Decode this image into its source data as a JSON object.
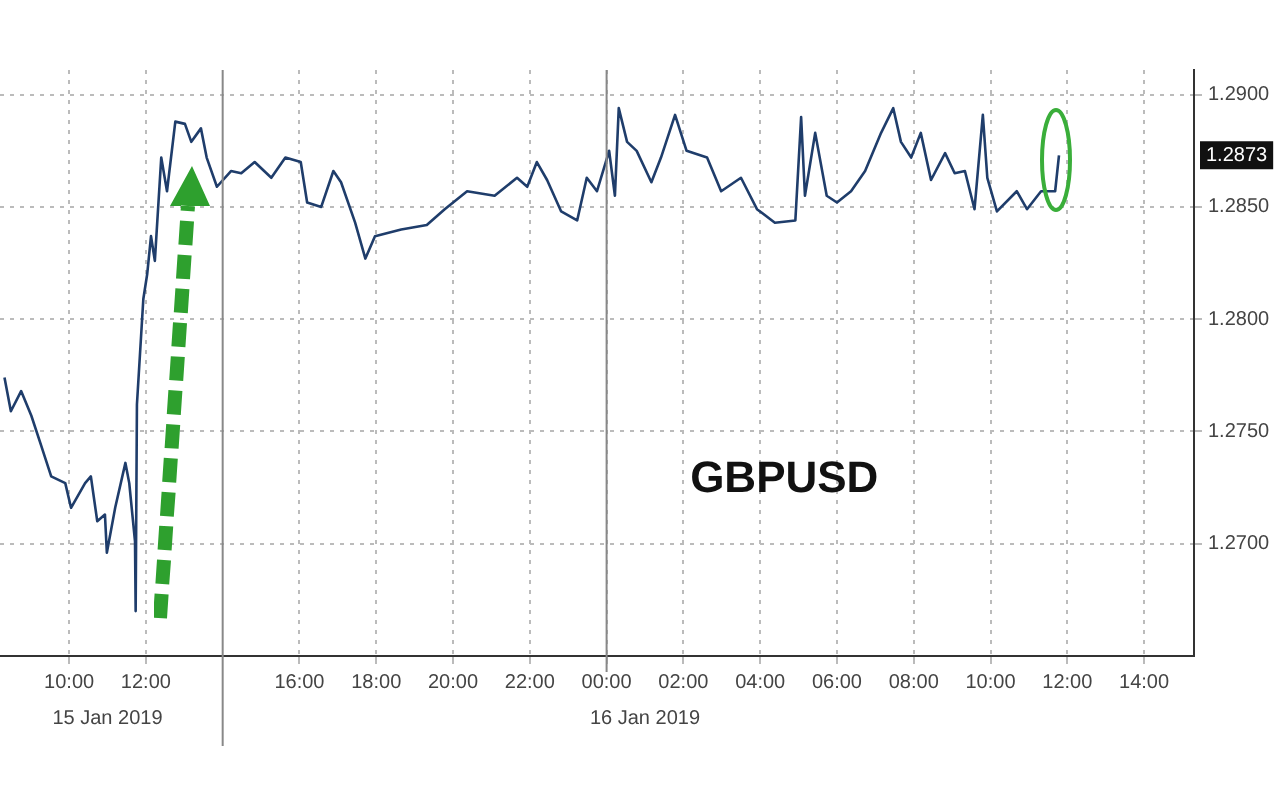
{
  "chart_data": {
    "type": "line",
    "title": "GBPUSD",
    "x": [
      "2019-01-15T08:19",
      "2019-01-15T08:29",
      "2019-01-15T08:45",
      "2019-01-15T09:01",
      "2019-01-15T09:16",
      "2019-01-15T09:32",
      "2019-01-15T09:54",
      "2019-01-15T10:03",
      "2019-01-15T10:25",
      "2019-01-15T10:34",
      "2019-01-15T10:44",
      "2019-01-15T10:56",
      "2019-01-15T10:59",
      "2019-01-15T11:12",
      "2019-01-15T11:28",
      "2019-01-15T11:34",
      "2019-01-15T11:43",
      "2019-01-15T11:44",
      "2019-01-15T11:46",
      "2019-01-15T11:56",
      "2019-01-15T12:02",
      "2019-01-15T12:08",
      "2019-01-15T12:14",
      "2019-01-15T12:24",
      "2019-01-15T12:33",
      "2019-01-15T12:46",
      "2019-01-15T13:01",
      "2019-01-15T13:11",
      "2019-01-15T13:26",
      "2019-01-15T13:35",
      "2019-01-15T13:51",
      "2019-01-15T14:13",
      "2019-01-15T14:29",
      "2019-01-15T14:50",
      "2019-01-15T15:16",
      "2019-01-15T15:38",
      "2019-01-15T16:02",
      "2019-01-15T16:12",
      "2019-01-15T16:34",
      "2019-01-15T16:53",
      "2019-01-15T17:05",
      "2019-01-15T17:27",
      "2019-01-15T17:43",
      "2019-01-15T17:58",
      "2019-01-15T18:39",
      "2019-01-15T19:19",
      "2019-01-15T19:47",
      "2019-01-15T20:22",
      "2019-01-15T21:05",
      "2019-01-15T21:40",
      "2019-01-15T21:56",
      "2019-01-15T22:11",
      "2019-01-15T22:27",
      "2019-01-15T22:49",
      "2019-01-15T23:14",
      "2019-01-15T23:29",
      "2019-01-15T23:45",
      "2019-01-16T00:04",
      "2019-01-16T00:13",
      "2019-01-16T00:19",
      "2019-01-16T00:32",
      "2019-01-16T00:47",
      "2019-01-16T01:10",
      "2019-01-16T01:25",
      "2019-01-16T01:47",
      "2019-01-16T02:05",
      "2019-01-16T02:37",
      "2019-01-16T02:59",
      "2019-01-16T03:30",
      "2019-01-16T03:55",
      "2019-01-16T04:23",
      "2019-01-16T04:55",
      "2019-01-16T05:04",
      "2019-01-16T05:10",
      "2019-01-16T05:26",
      "2019-01-16T05:44",
      "2019-01-16T06:00",
      "2019-01-16T06:22",
      "2019-01-16T06:44",
      "2019-01-16T07:09",
      "2019-01-16T07:28",
      "2019-01-16T07:40",
      "2019-01-16T07:56",
      "2019-01-16T08:11",
      "2019-01-16T08:27",
      "2019-01-16T08:49",
      "2019-01-16T09:04",
      "2019-01-16T09:20",
      "2019-01-16T09:35",
      "2019-01-16T09:48",
      "2019-01-16T09:55",
      "2019-01-16T10:10",
      "2019-01-16T10:41",
      "2019-01-16T10:57",
      "2019-01-16T11:19",
      "2019-01-16T11:41",
      "2019-01-16T11:47"
    ],
    "series": [
      {
        "color": "#1f3d6b",
        "values": [
          1.2774,
          1.2759,
          1.2768,
          1.2757,
          1.2744,
          1.273,
          1.2727,
          1.2716,
          1.2727,
          1.273,
          1.271,
          1.2713,
          1.2696,
          1.2716,
          1.2736,
          1.2727,
          1.2701,
          1.267,
          1.2762,
          1.2809,
          1.282,
          1.2837,
          1.2826,
          1.2872,
          1.2857,
          1.2888,
          1.2887,
          1.2879,
          1.2885,
          1.2872,
          1.2859,
          1.2866,
          1.2865,
          1.287,
          1.2863,
          1.2872,
          1.287,
          1.2852,
          1.285,
          1.2866,
          1.2861,
          1.2843,
          1.2827,
          1.2837,
          1.284,
          1.2842,
          1.2849,
          1.2857,
          1.2855,
          1.2863,
          1.2859,
          1.287,
          1.2862,
          1.2848,
          1.2844,
          1.2863,
          1.2857,
          1.2875,
          1.2855,
          1.2894,
          1.2879,
          1.2875,
          1.2861,
          1.2872,
          1.2891,
          1.2875,
          1.2872,
          1.2857,
          1.2863,
          1.2849,
          1.2843,
          1.2844,
          1.289,
          1.2855,
          1.2883,
          1.2855,
          1.2852,
          1.2857,
          1.2866,
          1.2883,
          1.2894,
          1.2879,
          1.2872,
          1.2883,
          1.2862,
          1.2874,
          1.2865,
          1.2866,
          1.2849,
          1.2891,
          1.2863,
          1.2848,
          1.2857,
          1.2849,
          1.2857,
          1.2857,
          1.2873
        ]
      }
    ],
    "xlim": [
      "2019-01-15T08:12",
      "2019-01-16T15:18"
    ],
    "xticks": [
      {
        "value": "2019-01-15T10:00",
        "label": "10:00"
      },
      {
        "value": "2019-01-15T12:00",
        "label": "12:00"
      },
      {
        "value": "2019-01-15T16:00",
        "label": "16:00"
      },
      {
        "value": "2019-01-15T18:00",
        "label": "18:00"
      },
      {
        "value": "2019-01-15T20:00",
        "label": "20:00"
      },
      {
        "value": "2019-01-15T22:00",
        "label": "22:00"
      },
      {
        "value": "2019-01-16T00:00",
        "label": "00:00"
      },
      {
        "value": "2019-01-16T02:00",
        "label": "02:00"
      },
      {
        "value": "2019-01-16T04:00",
        "label": "04:00"
      },
      {
        "value": "2019-01-16T06:00",
        "label": "06:00"
      },
      {
        "value": "2019-01-16T08:00",
        "label": "08:00"
      },
      {
        "value": "2019-01-16T10:00",
        "label": "10:00"
      },
      {
        "value": "2019-01-16T12:00",
        "label": "12:00"
      },
      {
        "value": "2019-01-16T14:00",
        "label": "14:00"
      }
    ],
    "ylim": [
      1.265,
      1.2911
    ],
    "yticks": [
      {
        "value": 1.27,
        "label": "1.2700"
      },
      {
        "value": 1.275,
        "label": "1.2750"
      },
      {
        "value": 1.28,
        "label": "1.2800"
      },
      {
        "value": 1.285,
        "label": "1.2850"
      },
      {
        "value": 1.29,
        "label": "1.2900"
      }
    ],
    "ref_lines": [
      {
        "axis": "x",
        "value": "2019-01-15T14:00",
        "label": null,
        "color": "#888888"
      },
      {
        "axis": "x",
        "value": "2019-01-16T00:00",
        "label": null,
        "color": "#888888"
      }
    ],
    "annotations": [
      "15 Jan 2019",
      "16 Jan 2019",
      {
        "text": "1.2873",
        "y": 1.2873
      }
    ],
    "grid": true,
    "legend": false,
    "marker": "none",
    "line_style": "solid"
  }
}
